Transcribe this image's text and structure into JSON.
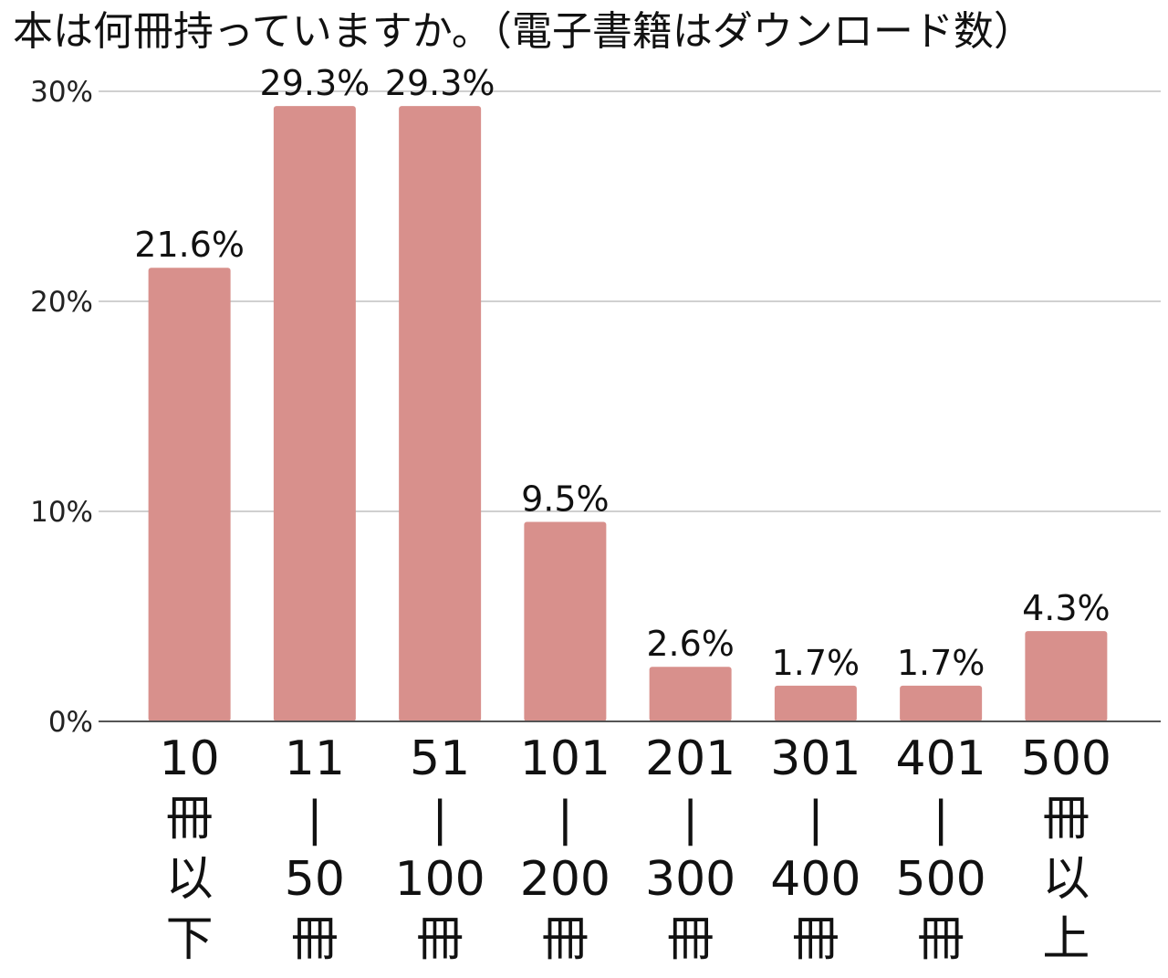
{
  "chart_data": {
    "type": "bar",
    "title": "本は何冊持っていますか。（電子書籍はダウンロード数）",
    "xlabel": "",
    "ylabel": "",
    "ylim": [
      0,
      30
    ],
    "yticks": [
      0,
      10,
      20,
      30
    ],
    "ytick_labels": [
      "0%",
      "10%",
      "20%",
      "30%"
    ],
    "grid": true,
    "legend": "none",
    "bar_color": "#d8908c",
    "categories": [
      [
        "10",
        "冊",
        "以",
        "下"
      ],
      [
        "11",
        "|",
        "50",
        "冊"
      ],
      [
        "51",
        "|",
        "100",
        "冊"
      ],
      [
        "101",
        "|",
        "200",
        "冊"
      ],
      [
        "201",
        "|",
        "300",
        "冊"
      ],
      [
        "301",
        "|",
        "400",
        "冊"
      ],
      [
        "401",
        "|",
        "500",
        "冊"
      ],
      [
        "500",
        "冊",
        "以",
        "上"
      ]
    ],
    "values": [
      21.6,
      29.3,
      29.3,
      9.5,
      2.6,
      1.7,
      1.7,
      4.3
    ],
    "value_labels": [
      "21.6%",
      "29.3%",
      "29.3%",
      "9.5%",
      "2.6%",
      "1.7%",
      "1.7%",
      "4.3%"
    ]
  }
}
